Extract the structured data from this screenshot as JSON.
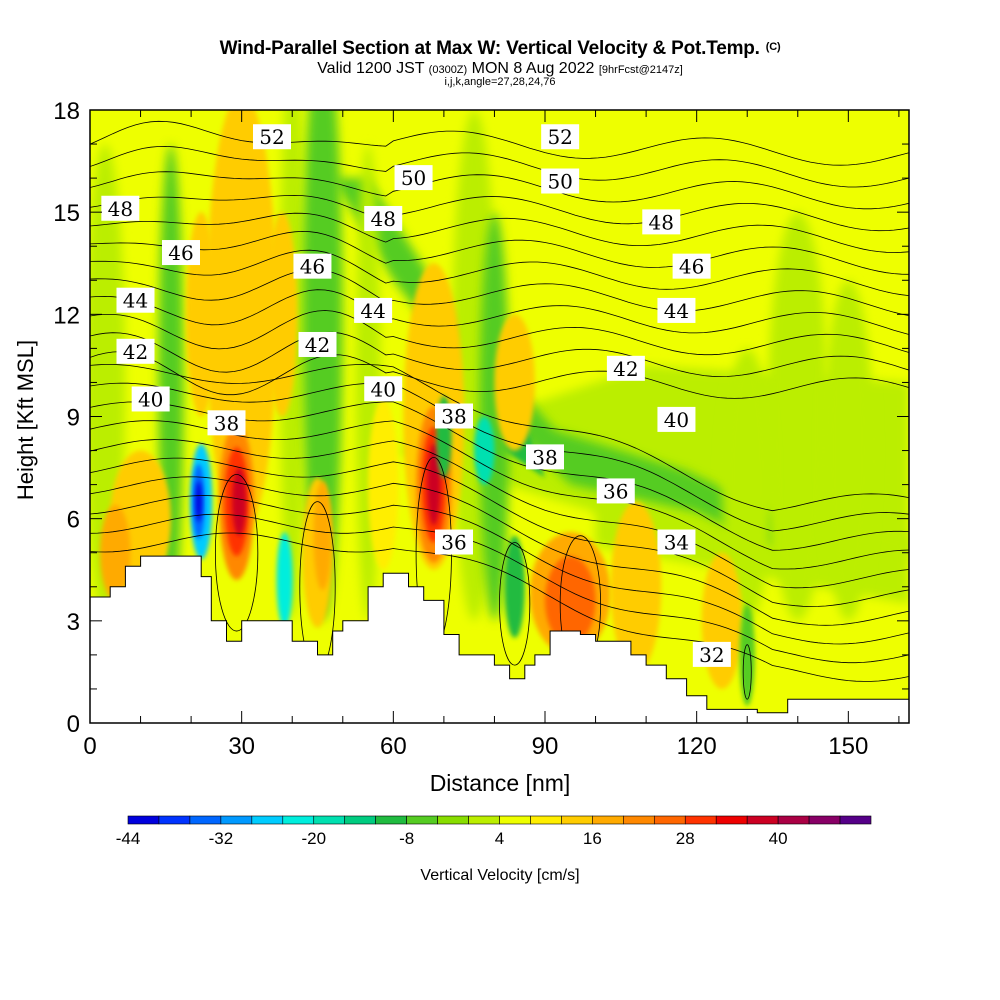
{
  "title": {
    "main": "Wind-Parallel Section at Max W: Vertical Velocity & Pot.Temp.",
    "copyright": "(C)",
    "valid_prefix": "Valid 1200 JST",
    "valid_utc": "(0300Z)",
    "valid_date": "MON 8 Aug 2022",
    "forecast": "[9hrFcst@2147z]",
    "indices": "i,j,k,angle=27,28,24,76"
  },
  "chart_data": {
    "type": "heatmap",
    "xlabel": "Distance [nm]",
    "ylabel": "Height [Kft MSL]",
    "xlim": [
      0,
      162
    ],
    "ylim": [
      0,
      18
    ],
    "xticks": [
      0,
      30,
      60,
      90,
      120,
      150
    ],
    "yticks": [
      0,
      3,
      6,
      9,
      12,
      15,
      18
    ],
    "colorbar": {
      "label": "Vertical Velocity [cm/s]",
      "tick_labels": [
        -44,
        -32,
        -20,
        -8,
        4,
        16,
        28,
        40
      ],
      "levels": [
        -44,
        -40,
        -36,
        -32,
        -28,
        -24,
        -20,
        -16,
        -12,
        -8,
        -4,
        0,
        4,
        8,
        12,
        16,
        20,
        24,
        28,
        32,
        36,
        40,
        44,
        48
      ],
      "colors": [
        "#0000dd",
        "#0033ff",
        "#0066ff",
        "#0099ff",
        "#00ccff",
        "#00eedd",
        "#00e0b0",
        "#00cc80",
        "#20bb40",
        "#55cc22",
        "#88dd00",
        "#bbee00",
        "#eeff00",
        "#ffee00",
        "#ffcc00",
        "#ffaa00",
        "#ff8800",
        "#ff6600",
        "#ff3300",
        "#ee0000",
        "#cc0022",
        "#aa0044",
        "#880066",
        "#550088"
      ]
    },
    "terrain_profile_kft": [
      [
        0,
        3.7
      ],
      [
        4,
        4.0
      ],
      [
        7,
        4.6
      ],
      [
        10,
        4.9
      ],
      [
        22,
        4.3
      ],
      [
        24,
        3.0
      ],
      [
        27,
        2.4
      ],
      [
        30,
        3.0
      ],
      [
        40,
        2.4
      ],
      [
        45,
        2.0
      ],
      [
        48,
        2.7
      ],
      [
        50,
        3.0
      ],
      [
        55,
        4.0
      ],
      [
        58,
        4.4
      ],
      [
        63,
        4.0
      ],
      [
        66,
        3.6
      ],
      [
        70,
        2.6
      ],
      [
        73,
        2.0
      ],
      [
        80,
        1.7
      ],
      [
        83,
        1.3
      ],
      [
        86,
        1.7
      ],
      [
        88,
        2.0
      ],
      [
        91,
        2.7
      ],
      [
        97,
        2.6
      ],
      [
        100,
        2.4
      ],
      [
        107,
        2.0
      ],
      [
        110,
        1.7
      ],
      [
        114,
        1.3
      ],
      [
        118,
        0.8
      ],
      [
        122,
        0.4
      ],
      [
        125,
        0.4
      ],
      [
        132,
        0.3
      ],
      [
        138,
        0.7
      ],
      [
        162,
        0.7
      ]
    ],
    "updraft_maxima": [
      {
        "x_nm": 29,
        "y_kft": 6.5,
        "w_cms": 32
      },
      {
        "x_nm": 68,
        "y_kft": 6.5,
        "w_cms": 32
      },
      {
        "x_nm": 95,
        "y_kft": 3.5,
        "w_cms": 20
      }
    ],
    "downdraft_minima": [
      {
        "x_nm": 22,
        "y_kft": 6.5,
        "w_cms": -40
      },
      {
        "x_nm": 38,
        "y_kft": 4.5,
        "w_cms": -24
      }
    ],
    "theta_contour_labels": [
      {
        "text": "52",
        "x_nm": 36,
        "y_kft": 17.2
      },
      {
        "text": "52",
        "x_nm": 93,
        "y_kft": 17.2
      },
      {
        "text": "50",
        "x_nm": 64,
        "y_kft": 16.0
      },
      {
        "text": "50",
        "x_nm": 93,
        "y_kft": 15.9
      },
      {
        "text": "48",
        "x_nm": 6,
        "y_kft": 15.1
      },
      {
        "text": "48",
        "x_nm": 58,
        "y_kft": 14.8
      },
      {
        "text": "48",
        "x_nm": 113,
        "y_kft": 14.7
      },
      {
        "text": "46",
        "x_nm": 18,
        "y_kft": 13.8
      },
      {
        "text": "46",
        "x_nm": 44,
        "y_kft": 13.4
      },
      {
        "text": "46",
        "x_nm": 119,
        "y_kft": 13.4
      },
      {
        "text": "44",
        "x_nm": 9,
        "y_kft": 12.4
      },
      {
        "text": "44",
        "x_nm": 56,
        "y_kft": 12.1
      },
      {
        "text": "44",
        "x_nm": 116,
        "y_kft": 12.1
      },
      {
        "text": "42",
        "x_nm": 9,
        "y_kft": 10.9
      },
      {
        "text": "42",
        "x_nm": 45,
        "y_kft": 11.1
      },
      {
        "text": "42",
        "x_nm": 106,
        "y_kft": 10.4
      },
      {
        "text": "40",
        "x_nm": 12,
        "y_kft": 9.5
      },
      {
        "text": "40",
        "x_nm": 58,
        "y_kft": 9.8
      },
      {
        "text": "40",
        "x_nm": 116,
        "y_kft": 8.9
      },
      {
        "text": "38",
        "x_nm": 27,
        "y_kft": 8.8
      },
      {
        "text": "38",
        "x_nm": 72,
        "y_kft": 9.0
      },
      {
        "text": "38",
        "x_nm": 90,
        "y_kft": 7.8
      },
      {
        "text": "36",
        "x_nm": 72,
        "y_kft": 5.3
      },
      {
        "text": "36",
        "x_nm": 104,
        "y_kft": 6.8
      },
      {
        "text": "34",
        "x_nm": 116,
        "y_kft": 5.3
      },
      {
        "text": "32",
        "x_nm": 123,
        "y_kft": 2.0
      }
    ]
  }
}
